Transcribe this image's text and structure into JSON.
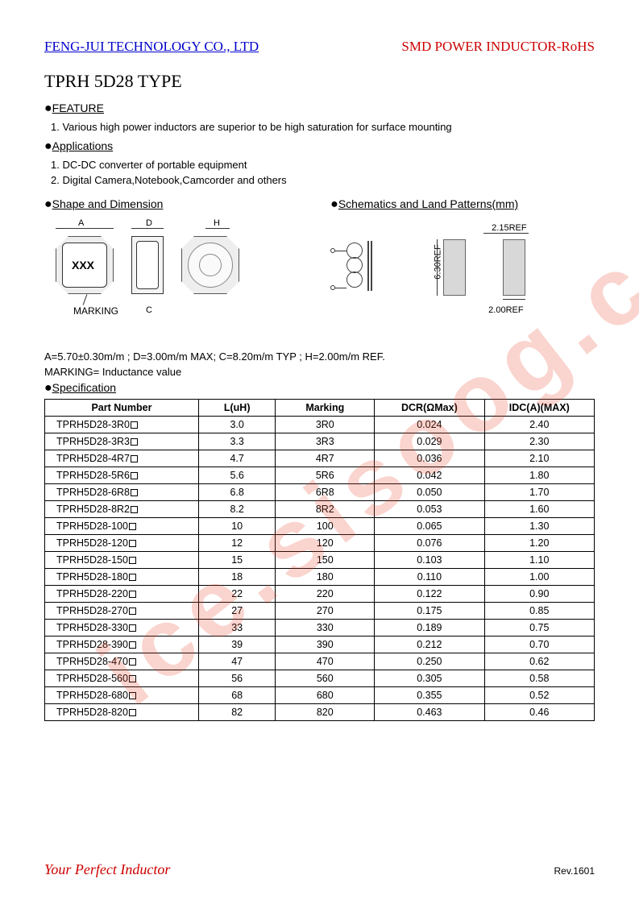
{
  "header": {
    "company": "FENG-JUI TECHNOLOGY CO., LTD",
    "product": "SMD POWER INDUCTOR-RoHS"
  },
  "title": "TPRH 5D28 TYPE",
  "sections": {
    "feature_head": "FEATURE",
    "feature_1": "1.   Various high power inductors are superior to be high saturation for surface mounting",
    "apps_head": "Applications",
    "apps_1": "1.   DC-DC converter of portable equipment",
    "apps_2": "2.   Digital Camera,Notebook,Camcorder and others",
    "shape_head": "Shape and Dimension",
    "schem_head": "Schematics and Land Patterns(mm)"
  },
  "shape_labels": {
    "A": "A",
    "D": "D",
    "H": "H",
    "C": "C",
    "marking": "MARKING",
    "xxx": "XXX"
  },
  "land_labels": {
    "ref215": "2.15REF",
    "ref630": "6.30REF",
    "ref200": "2.00REF"
  },
  "dims_line": "A=5.70±0.30m/m ; D=3.00m/m MAX; C=8.20m/m TYP ; H=2.00m/m REF.",
  "marking_line": "MARKING= Inductance value",
  "spec_head": "Specification",
  "table": {
    "columns": [
      "Part Number",
      "L(uH)",
      "Marking",
      "DCR(ΩMax)",
      "IDC(A)(MAX)"
    ],
    "col_widths": [
      "28%",
      "14%",
      "18%",
      "20%",
      "20%"
    ],
    "rows": [
      [
        "TPRH5D28-3R0",
        "3.0",
        "3R0",
        "0.024",
        "2.40"
      ],
      [
        "TPRH5D28-3R3",
        "3.3",
        "3R3",
        "0.029",
        "2.30"
      ],
      [
        "TPRH5D28-4R7",
        "4.7",
        "4R7",
        "0.036",
        "2.10"
      ],
      [
        "TPRH5D28-5R6",
        "5.6",
        "5R6",
        "0.042",
        "1.80"
      ],
      [
        "TPRH5D28-6R8",
        "6.8",
        "6R8",
        "0.050",
        "1.70"
      ],
      [
        "TPRH5D28-8R2",
        "8.2",
        "8R2",
        "0.053",
        "1.60"
      ],
      [
        "TPRH5D28-100",
        "10",
        "100",
        "0.065",
        "1.30"
      ],
      [
        "TPRH5D28-120",
        "12",
        "120",
        "0.076",
        "1.20"
      ],
      [
        "TPRH5D28-150",
        "15",
        "150",
        "0.103",
        "1.10"
      ],
      [
        "TPRH5D28-180",
        "18",
        "180",
        "0.110",
        "1.00"
      ],
      [
        "TPRH5D28-220",
        "22",
        "220",
        "0.122",
        "0.90"
      ],
      [
        "TPRH5D28-270",
        "27",
        "270",
        "0.175",
        "0.85"
      ],
      [
        "TPRH5D28-330",
        "33",
        "330",
        "0.189",
        "0.75"
      ],
      [
        "TPRH5D28-390",
        "39",
        "390",
        "0.212",
        "0.70"
      ],
      [
        "TPRH5D28-470",
        "47",
        "470",
        "0.250",
        "0.62"
      ],
      [
        "TPRH5D28-560",
        "56",
        "560",
        "0.305",
        "0.58"
      ],
      [
        "TPRH5D28-680",
        "68",
        "680",
        "0.355",
        "0.52"
      ],
      [
        "TPRH5D28-820",
        "82",
        "820",
        "0.463",
        "0.46"
      ]
    ]
  },
  "footer": {
    "slogan": "Your Perfect Inductor",
    "rev": "Rev.1601"
  },
  "watermark": "ice.sisoog.com",
  "colors": {
    "link_blue": "#0000cc",
    "brand_red": "#cc0000",
    "watermark": "rgba(230,60,30,0.22)",
    "border": "#000000"
  }
}
